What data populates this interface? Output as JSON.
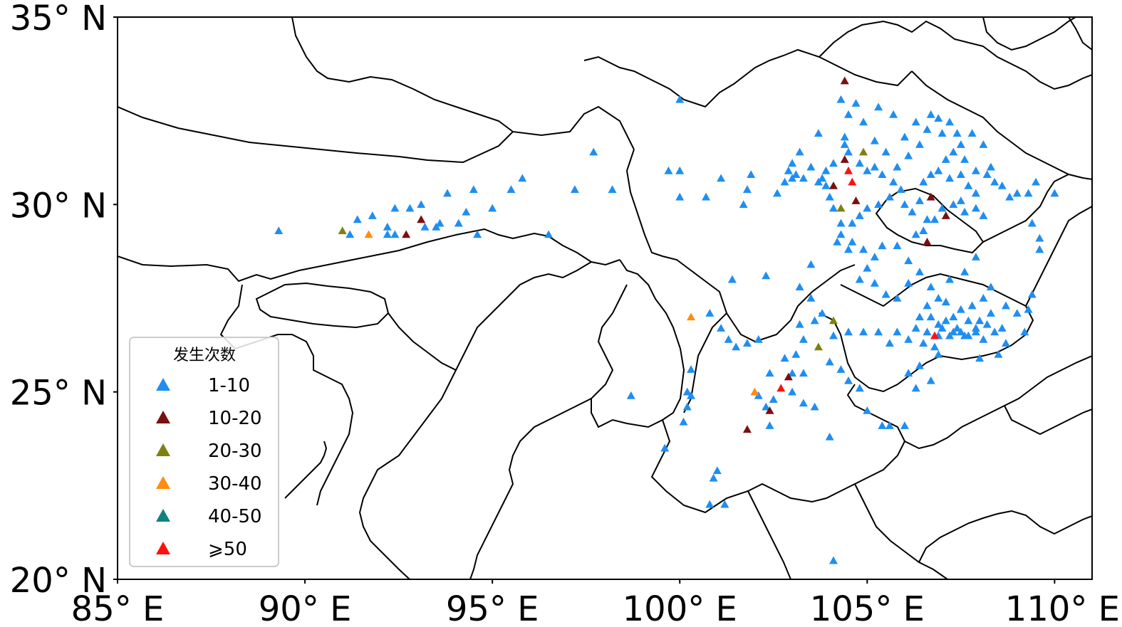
{
  "lat_ticks": [
    {
      "label": "35° N",
      "lat": 35
    },
    {
      "label": "30° N",
      "lat": 30
    },
    {
      "label": "25° N",
      "lat": 25
    },
    {
      "label": "20° N",
      "lat": 20
    }
  ],
  "lon_ticks": [
    {
      "label": "85° E",
      "lon": 85
    },
    {
      "label": "90° E",
      "lon": 90
    },
    {
      "label": "95° E",
      "lon": 95
    },
    {
      "label": "100° E",
      "lon": 100
    },
    {
      "label": "105° E",
      "lon": 105
    },
    {
      "label": "110° E",
      "lon": 110
    }
  ],
  "extent": {
    "lon_min": 85,
    "lon_max": 111,
    "lat_min": 20,
    "lat_max": 35
  },
  "legend": {
    "title": "发生次数",
    "placement": "lower-left",
    "entries": [
      {
        "label": "1-10",
        "color": "#1f8ef1"
      },
      {
        "label": "10-20",
        "color": "#7a0f0f"
      },
      {
        "label": "20-30",
        "color": "#808010"
      },
      {
        "label": "30-40",
        "color": "#ff8c10"
      },
      {
        "label": "40-50",
        "color": "#138080"
      },
      {
        "label": "⩾50",
        "color": "#ff1010"
      }
    ]
  },
  "markers": {
    "1-10": [
      [
        89.3,
        29.3
      ],
      [
        91.2,
        29.2
      ],
      [
        91.4,
        29.6
      ],
      [
        91.8,
        29.7
      ],
      [
        92.2,
        29.4
      ],
      [
        92.2,
        29.2
      ],
      [
        92.4,
        29.2
      ],
      [
        92.4,
        29.9
      ],
      [
        92.8,
        29.9
      ],
      [
        93.1,
        30.0
      ],
      [
        93.2,
        29.4
      ],
      [
        93.5,
        29.4
      ],
      [
        93.6,
        29.5
      ],
      [
        93.8,
        30.3
      ],
      [
        94.1,
        29.5
      ],
      [
        94.3,
        29.8
      ],
      [
        94.5,
        30.4
      ],
      [
        94.6,
        29.2
      ],
      [
        95.0,
        29.9
      ],
      [
        95.5,
        30.4
      ],
      [
        95.8,
        30.7
      ],
      [
        96.5,
        29.2
      ],
      [
        97.2,
        30.4
      ],
      [
        97.7,
        31.4
      ],
      [
        98.2,
        30.4
      ],
      [
        100.0,
        32.8
      ],
      [
        99.7,
        30.9
      ],
      [
        100.0,
        30.9
      ],
      [
        100.0,
        30.2
      ],
      [
        100.7,
        30.2
      ],
      [
        101.1,
        30.7
      ],
      [
        101.4,
        28.0
      ],
      [
        101.7,
        30.0
      ],
      [
        101.8,
        30.4
      ],
      [
        101.9,
        30.8
      ],
      [
        102.3,
        28.1
      ],
      [
        102.6,
        30.3
      ],
      [
        102.8,
        30.6
      ],
      [
        103.0,
        30.7
      ],
      [
        103.1,
        30.8
      ],
      [
        103.3,
        30.7
      ],
      [
        103.7,
        30.6
      ],
      [
        103.8,
        30.7
      ],
      [
        103.9,
        30.5
      ],
      [
        104.0,
        30.2
      ],
      [
        104.1,
        29.9
      ],
      [
        104.3,
        29.5
      ],
      [
        104.2,
        29.0
      ],
      [
        104.5,
        28.8
      ],
      [
        103.5,
        28.4
      ],
      [
        103.2,
        27.8
      ],
      [
        103.5,
        27.5
      ],
      [
        103.8,
        27.1
      ],
      [
        103.6,
        26.9
      ],
      [
        103.2,
        26.8
      ],
      [
        103.3,
        26.4
      ],
      [
        103.1,
        26.0
      ],
      [
        102.8,
        25.9
      ],
      [
        103.0,
        25.5
      ],
      [
        103.3,
        25.5
      ],
      [
        103.0,
        25.0
      ],
      [
        103.3,
        24.7
      ],
      [
        103.6,
        24.6
      ],
      [
        102.5,
        24.8
      ],
      [
        102.3,
        24.6
      ],
      [
        102.4,
        25.5
      ],
      [
        102.1,
        24.9
      ],
      [
        102.4,
        24.1
      ],
      [
        102.1,
        26.4
      ],
      [
        101.8,
        26.3
      ],
      [
        101.5,
        26.2
      ],
      [
        101.3,
        26.4
      ],
      [
        101.1,
        26.7
      ],
      [
        100.8,
        27.1
      ],
      [
        100.3,
        25.6
      ],
      [
        100.2,
        24.6
      ],
      [
        100.1,
        24.2
      ],
      [
        100.2,
        25.0
      ],
      [
        100.3,
        24.9
      ],
      [
        99.6,
        23.5
      ],
      [
        98.7,
        24.9
      ],
      [
        100.9,
        22.7
      ],
      [
        101.0,
        22.9
      ],
      [
        100.8,
        22.0
      ],
      [
        101.2,
        22.0
      ],
      [
        104.0,
        23.8
      ],
      [
        104.1,
        20.5
      ],
      [
        104.0,
        25.8
      ],
      [
        104.3,
        25.6
      ],
      [
        104.5,
        25.3
      ],
      [
        104.8,
        25.1
      ],
      [
        105.0,
        24.5
      ],
      [
        105.4,
        24.1
      ],
      [
        105.6,
        24.1
      ],
      [
        106.0,
        24.1
      ],
      [
        104.1,
        26.5
      ],
      [
        104.5,
        26.6
      ],
      [
        104.9,
        26.6
      ],
      [
        105.3,
        26.6
      ],
      [
        105.6,
        26.3
      ],
      [
        105.8,
        26.6
      ],
      [
        106.1,
        26.4
      ],
      [
        106.3,
        26.7
      ],
      [
        106.4,
        27.0
      ],
      [
        106.7,
        27.0
      ],
      [
        106.6,
        26.6
      ],
      [
        106.5,
        26.3
      ],
      [
        106.8,
        26.2
      ],
      [
        106.9,
        26.0
      ],
      [
        106.4,
        25.7
      ],
      [
        106.1,
        25.5
      ],
      [
        106.3,
        25.1
      ],
      [
        106.7,
        25.3
      ],
      [
        106.6,
        27.3
      ],
      [
        106.9,
        27.5
      ],
      [
        106.7,
        27.8
      ],
      [
        107.1,
        27.4
      ],
      [
        107.3,
        27.0
      ],
      [
        107.4,
        26.7
      ],
      [
        107.6,
        26.5
      ],
      [
        107.7,
        26.9
      ],
      [
        107.9,
        26.6
      ],
      [
        108.0,
        26.9
      ],
      [
        108.2,
        26.8
      ],
      [
        108.3,
        27.1
      ],
      [
        108.1,
        27.5
      ],
      [
        107.8,
        27.3
      ],
      [
        107.5,
        27.2
      ],
      [
        107.2,
        26.5
      ],
      [
        107.0,
        26.7
      ],
      [
        106.9,
        26.5
      ],
      [
        106.9,
        26.8
      ],
      [
        107.1,
        26.9
      ],
      [
        107.3,
        26.6
      ],
      [
        107.5,
        26.6
      ],
      [
        107.7,
        26.5
      ],
      [
        107.9,
        26.7
      ],
      [
        108.1,
        26.4
      ],
      [
        108.4,
        26.6
      ],
      [
        108.6,
        26.7
      ],
      [
        108.7,
        26.3
      ],
      [
        108.5,
        26.0
      ],
      [
        108.0,
        25.9
      ],
      [
        107.2,
        28.0
      ],
      [
        107.6,
        28.2
      ],
      [
        107.9,
        28.6
      ],
      [
        108.3,
        27.8
      ],
      [
        108.7,
        27.3
      ],
      [
        109.0,
        27.1
      ],
      [
        109.2,
        26.6
      ],
      [
        109.3,
        27.2
      ],
      [
        109.4,
        27.6
      ],
      [
        109.6,
        29.1
      ],
      [
        109.4,
        29.5
      ],
      [
        109.6,
        28.8
      ],
      [
        109.3,
        30.3
      ],
      [
        104.5,
        32.4
      ],
      [
        104.7,
        32.7
      ],
      [
        104.3,
        32.8
      ],
      [
        104.4,
        31.8
      ],
      [
        104.4,
        31.6
      ],
      [
        104.5,
        31.4
      ],
      [
        104.8,
        31.1
      ],
      [
        105.0,
        30.9
      ],
      [
        105.2,
        31.0
      ],
      [
        105.4,
        30.8
      ],
      [
        105.7,
        30.6
      ],
      [
        105.9,
        30.4
      ],
      [
        105.6,
        30.2
      ],
      [
        105.3,
        30.0
      ],
      [
        105.0,
        29.9
      ],
      [
        104.8,
        29.7
      ],
      [
        104.6,
        29.5
      ],
      [
        104.3,
        29.2
      ],
      [
        104.6,
        29.0
      ],
      [
        104.9,
        28.8
      ],
      [
        105.2,
        28.6
      ],
      [
        105.4,
        28.9
      ],
      [
        105.0,
        28.3
      ],
      [
        104.8,
        28.0
      ],
      [
        105.2,
        27.9
      ],
      [
        105.5,
        27.6
      ],
      [
        105.8,
        27.5
      ],
      [
        106.1,
        27.9
      ],
      [
        106.4,
        28.2
      ],
      [
        106.1,
        28.5
      ],
      [
        105.8,
        28.9
      ],
      [
        106.3,
        29.2
      ],
      [
        106.5,
        29.3
      ],
      [
        106.6,
        29.6
      ],
      [
        106.8,
        29.6
      ],
      [
        107.0,
        29.9
      ],
      [
        107.3,
        30.0
      ],
      [
        107.6,
        29.8
      ],
      [
        107.9,
        29.9
      ],
      [
        108.1,
        29.7
      ],
      [
        106.2,
        29.8
      ],
      [
        106.0,
        30.0
      ],
      [
        106.4,
        30.1
      ],
      [
        106.5,
        30.6
      ],
      [
        106.7,
        30.8
      ],
      [
        106.9,
        30.9
      ],
      [
        107.2,
        30.7
      ],
      [
        107.5,
        30.8
      ],
      [
        107.7,
        30.5
      ],
      [
        107.9,
        30.3
      ],
      [
        108.2,
        30.8
      ],
      [
        108.3,
        31.0
      ],
      [
        108.4,
        30.6
      ],
      [
        107.1,
        31.2
      ],
      [
        107.3,
        31.4
      ],
      [
        107.5,
        31.6
      ],
      [
        107.8,
        31.9
      ],
      [
        108.1,
        31.6
      ],
      [
        107.4,
        31.9
      ],
      [
        107.2,
        32.2
      ],
      [
        106.9,
        32.3
      ],
      [
        106.6,
        32.0
      ],
      [
        106.4,
        31.6
      ],
      [
        106.1,
        31.3
      ],
      [
        105.8,
        31.0
      ],
      [
        105.5,
        31.4
      ],
      [
        105.2,
        31.7
      ],
      [
        104.9,
        32.2
      ],
      [
        105.3,
        32.6
      ],
      [
        105.7,
        32.4
      ],
      [
        106.0,
        31.8
      ],
      [
        106.3,
        32.2
      ],
      [
        106.7,
        32.4
      ],
      [
        107.0,
        31.9
      ],
      [
        107.6,
        31.2
      ],
      [
        107.9,
        30.9
      ],
      [
        108.6,
        30.5
      ],
      [
        108.8,
        30.2
      ],
      [
        109.0,
        30.3
      ],
      [
        109.5,
        30.6
      ],
      [
        110.0,
        30.3
      ],
      [
        107.5,
        30.1
      ],
      [
        103.7,
        31.9
      ],
      [
        103.2,
        31.4
      ],
      [
        103.0,
        31.1
      ],
      [
        102.9,
        30.9
      ],
      [
        103.5,
        31.0
      ],
      [
        103.9,
        30.9
      ],
      [
        104.1,
        31.1
      ]
    ],
    "10-20": [
      [
        93.1,
        29.6
      ],
      [
        92.7,
        29.2
      ],
      [
        104.4,
        33.3
      ],
      [
        104.4,
        31.2
      ],
      [
        104.1,
        30.5
      ],
      [
        104.7,
        30.1
      ],
      [
        106.7,
        30.2
      ],
      [
        106.6,
        29.0
      ],
      [
        107.1,
        29.7
      ],
      [
        102.9,
        25.4
      ],
      [
        102.4,
        24.5
      ],
      [
        101.8,
        24.0
      ]
    ],
    "20-30": [
      [
        91.0,
        29.3
      ],
      [
        104.9,
        31.4
      ],
      [
        104.3,
        29.9
      ],
      [
        104.1,
        26.9
      ],
      [
        103.7,
        26.2
      ]
    ],
    "30-40": [
      [
        91.7,
        29.2
      ],
      [
        100.3,
        27.0
      ],
      [
        102.0,
        25.0
      ]
    ],
    "40-50": [],
    "≥50": [
      [
        104.5,
        30.9
      ],
      [
        104.6,
        30.6
      ],
      [
        102.7,
        25.1
      ],
      [
        106.8,
        26.5
      ]
    ]
  }
}
